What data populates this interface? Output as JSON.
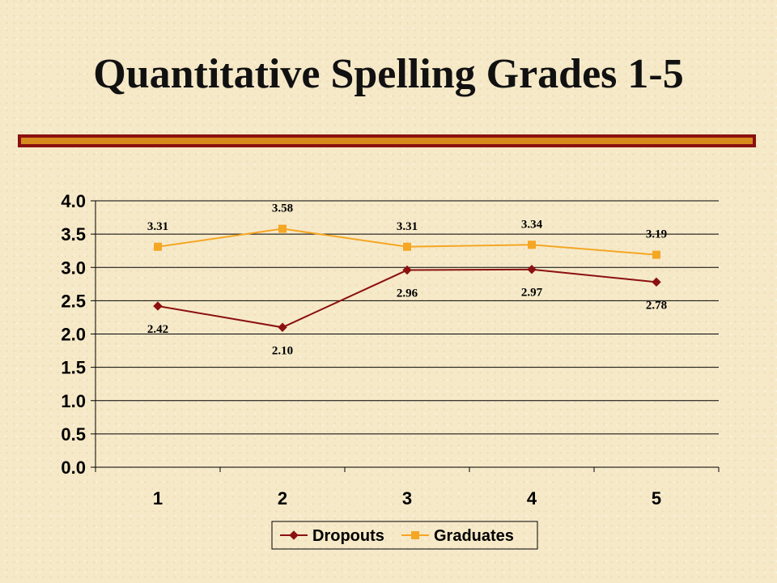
{
  "title": "Quantitative Spelling Grades 1-5",
  "chart_data": {
    "type": "line",
    "title": "",
    "xlabel": "",
    "ylabel": "",
    "categories": [
      "1",
      "2",
      "3",
      "4",
      "5"
    ],
    "ylim": [
      0,
      4
    ],
    "ytick_labels": [
      "0.0",
      "0.5",
      "1.0",
      "1.5",
      "2.0",
      "2.5",
      "3.0",
      "3.5",
      "4.0"
    ],
    "grid": true,
    "legend_position": "bottom",
    "series": [
      {
        "name": "Dropouts",
        "values": [
          2.42,
          2.1,
          2.96,
          2.97,
          2.78
        ],
        "labels": [
          "2.42",
          "2.10",
          "2.96",
          "2.97",
          "2.78"
        ],
        "color": "#8b1010",
        "marker": "diamond"
      },
      {
        "name": "Graduates",
        "values": [
          3.31,
          3.58,
          3.31,
          3.34,
          3.19
        ],
        "labels": [
          "3.31",
          "3.58",
          "3.31",
          "3.34",
          "3.19"
        ],
        "color": "#f5a623",
        "marker": "square"
      }
    ]
  }
}
